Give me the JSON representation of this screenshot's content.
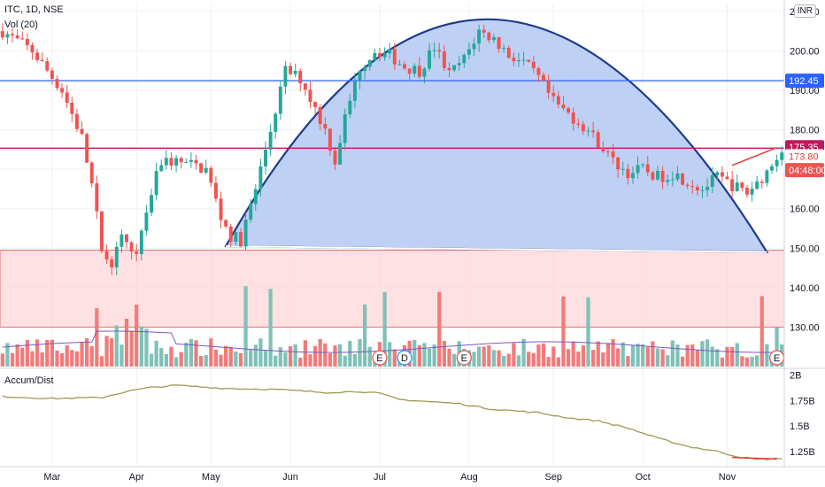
{
  "header": {
    "symbol_line": "ITC, 1D, NSE",
    "volume_label": "Vol (20)",
    "indicator_label": "Accum/Dist",
    "currency": "INR"
  },
  "chart_data": [
    {
      "type": "candlestick",
      "title": "ITC, 1D, NSE",
      "ylim": [
        120,
        212
      ],
      "y_ticks": [
        "210.00",
        "200.00",
        "190.00",
        "180.00",
        "170.00",
        "160.00",
        "150.00",
        "140.00",
        "130.00"
      ],
      "y_tick_values": [
        210,
        200,
        190,
        180,
        170,
        160,
        150,
        140,
        130
      ],
      "x_ticks": [
        "Mar",
        "Apr",
        "May",
        "Jun",
        "Jul",
        "Aug",
        "Sep",
        "Oct",
        "Nov"
      ],
      "price_path": [
        [
          0,
          205
        ],
        [
          6,
          200
        ],
        [
          12,
          190
        ],
        [
          16,
          178
        ],
        [
          18,
          166
        ],
        [
          20,
          150
        ],
        [
          22,
          146
        ],
        [
          24,
          152
        ],
        [
          27,
          150
        ],
        [
          30,
          164
        ],
        [
          32,
          172
        ],
        [
          35,
          172
        ],
        [
          38,
          171
        ],
        [
          41,
          170
        ],
        [
          44,
          158
        ],
        [
          46,
          153
        ],
        [
          48,
          152
        ],
        [
          51,
          165
        ],
        [
          54,
          180
        ],
        [
          57,
          195
        ],
        [
          60,
          193
        ],
        [
          62,
          188
        ],
        [
          65,
          180
        ],
        [
          67,
          172
        ],
        [
          69,
          183
        ],
        [
          72,
          196
        ],
        [
          75,
          200
        ],
        [
          78,
          199
        ],
        [
          81,
          196
        ],
        [
          84,
          195
        ],
        [
          87,
          201
        ],
        [
          90,
          194
        ],
        [
          93,
          198
        ],
        [
          96,
          205
        ],
        [
          99,
          203
        ],
        [
          102,
          199
        ],
        [
          105,
          197
        ],
        [
          108,
          193
        ],
        [
          111,
          187
        ],
        [
          114,
          184
        ],
        [
          117,
          181
        ],
        [
          120,
          177
        ],
        [
          123,
          172
        ],
        [
          126,
          169
        ],
        [
          129,
          170
        ],
        [
          132,
          168
        ],
        [
          135,
          169
        ],
        [
          138,
          167
        ],
        [
          141,
          165
        ],
        [
          144,
          168
        ],
        [
          147,
          166
        ],
        [
          150,
          164
        ],
        [
          153,
          168
        ],
        [
          155,
          171
        ],
        [
          157,
          175.5
        ]
      ],
      "last_price": "175.35",
      "tags": {
        "last": "175.35",
        "level": "173.80",
        "countdown": "04:48:00",
        "resistance": "192.45"
      },
      "horizontal_lines": [
        {
          "value": 192.45,
          "color": "#2962ff"
        },
        {
          "value": 175.35,
          "color": "#c2185b"
        }
      ],
      "zone": {
        "from": 130,
        "to": 149.5,
        "color": "#ffcdd2"
      },
      "arc": {
        "start_x": 45,
        "start_y": 150.5,
        "peak_x": 98,
        "peak_y": 208,
        "end_x": 154,
        "end_y": 149
      },
      "volume": {
        "name": "Vol (20)",
        "event_markers": [
          {
            "label": "E",
            "x": 76
          },
          {
            "label": "D",
            "x": 81
          },
          {
            "label": "E",
            "x": 93
          },
          {
            "label": "E",
            "x": 156
          }
        ]
      },
      "colors": {
        "up": "#26a69a",
        "down": "#ef5350",
        "vol_up": "#7fc1b8",
        "vol_down": "#f27b7a",
        "arc_fill": "#b3c8f2",
        "arc_stroke": "#1e3a8a",
        "ma": "#7e57c2"
      }
    },
    {
      "type": "line",
      "title": "Accum/Dist",
      "y_ticks": [
        "2B",
        "1.75B",
        "1.5B",
        "1.25B"
      ],
      "y_tick_values": [
        2.0,
        1.75,
        1.5,
        1.25
      ],
      "ylim": [
        1.1,
        2.05
      ],
      "color": "#9e9a54",
      "path": [
        [
          0,
          1.79
        ],
        [
          10,
          1.77
        ],
        [
          20,
          1.78
        ],
        [
          25,
          1.84
        ],
        [
          30,
          1.88
        ],
        [
          35,
          1.9
        ],
        [
          45,
          1.87
        ],
        [
          55,
          1.86
        ],
        [
          65,
          1.83
        ],
        [
          72,
          1.84
        ],
        [
          76,
          1.82
        ],
        [
          80,
          1.76
        ],
        [
          86,
          1.74
        ],
        [
          92,
          1.72
        ],
        [
          98,
          1.67
        ],
        [
          103,
          1.65
        ],
        [
          108,
          1.63
        ],
        [
          114,
          1.58
        ],
        [
          120,
          1.55
        ],
        [
          126,
          1.48
        ],
        [
          132,
          1.38
        ],
        [
          138,
          1.3
        ],
        [
          144,
          1.25
        ],
        [
          148,
          1.2
        ],
        [
          152,
          1.17
        ],
        [
          157,
          1.18
        ]
      ]
    }
  ]
}
